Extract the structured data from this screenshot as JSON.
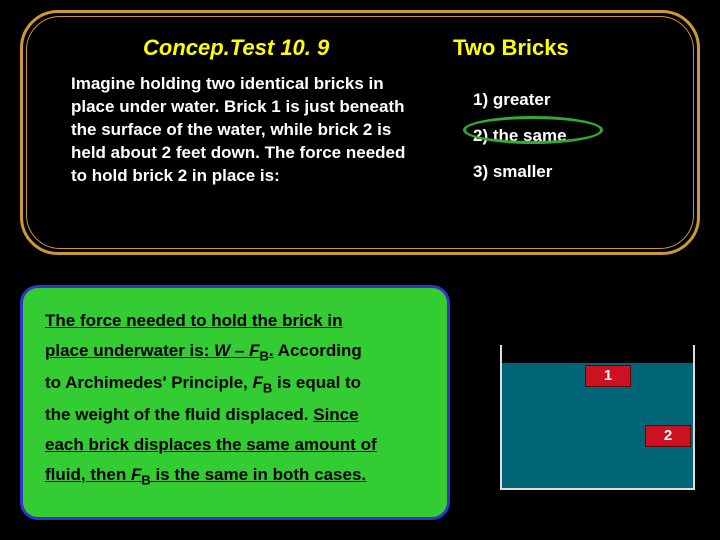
{
  "header": {
    "title_left": "Concep.Test 10. 9",
    "title_right": "Two Bricks"
  },
  "question": {
    "text": "Imagine holding two identical bricks in place under water.  Brick 1 is just beneath the surface of the water, while brick 2 is held about 2 feet down.  The force needed to hold brick 2 in place is:"
  },
  "options": {
    "opt1": "1)  greater",
    "opt2": "2)  the same",
    "opt3": "3)  smaller",
    "correct_index": 1
  },
  "answer": {
    "line1_u": "The force needed to hold the brick in",
    "line2_u_pre": "place underwater is:  ",
    "line2_formula_w": "W",
    "line2_formula_minus": " – ",
    "line2_formula_f": "F",
    "line2_formula_b": "B",
    "line2_formula_dot": ".",
    "line2_tail": "  According",
    "line3_pre": "to Archimedes' Principle, ",
    "line3_f": "F",
    "line3_b": "B",
    "line3_post": " is equal to",
    "line4": "the weight of the fluid displaced.  ",
    "line4_u": "Since",
    "line5_u": "each brick displaces the same amount of",
    "line6_u_pre": "fluid, then ",
    "line6_f": "F",
    "line6_b": "B",
    "line6_u_post": " is the same in both cases."
  },
  "diagram": {
    "brick1_label": "1",
    "brick2_label": "2",
    "water_color": "#006677",
    "brick_color": "#cc1122"
  },
  "colors": {
    "bg": "#000000",
    "panel_border": "#cc9933",
    "title": "#ffff00",
    "text_white": "#ffffff",
    "answer_bg": "#33cc33",
    "answer_border": "#3333cc",
    "highlight": "#33aa33"
  }
}
